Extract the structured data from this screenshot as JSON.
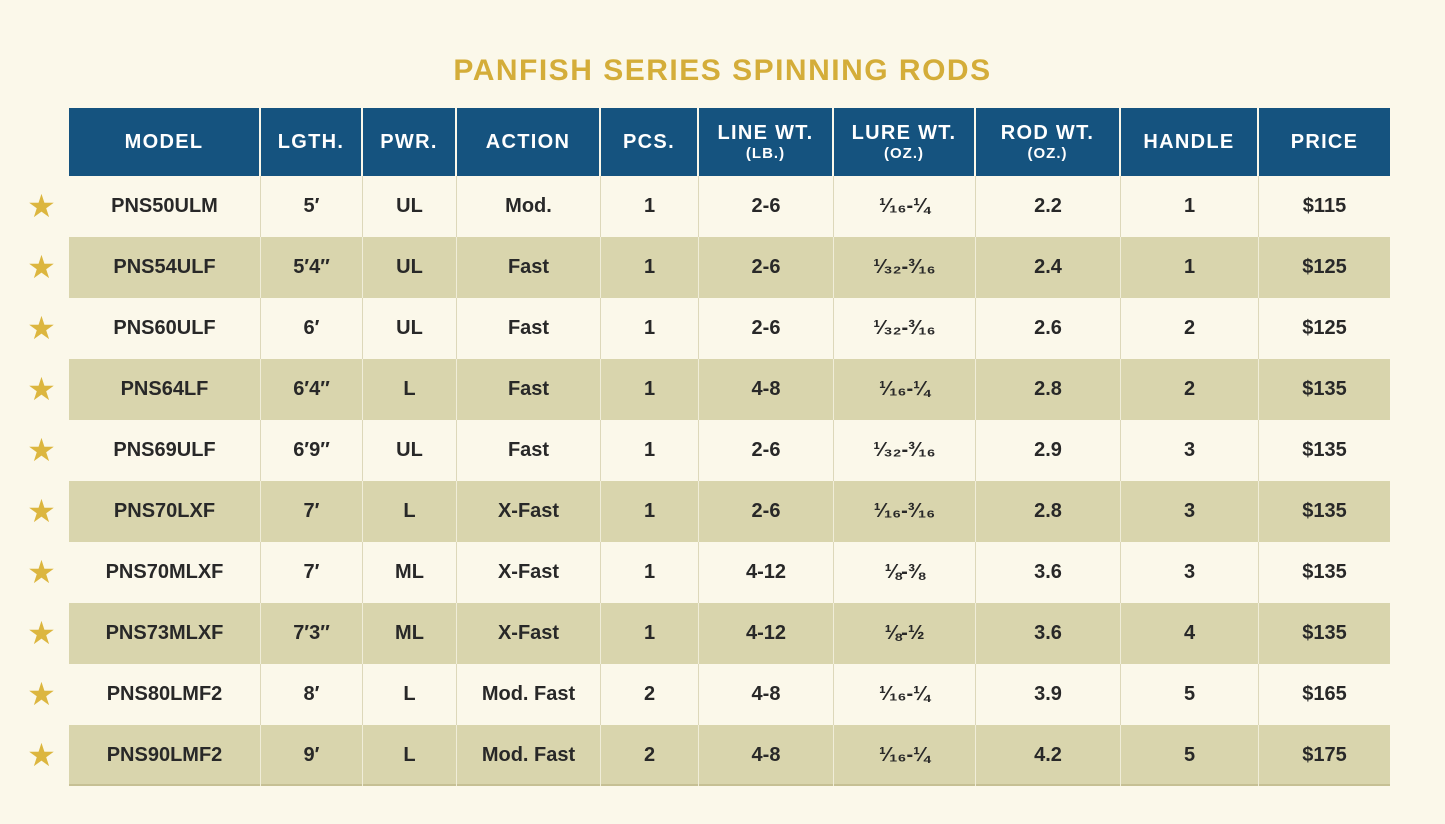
{
  "title": "PANFISH SERIES SPINNING RODS",
  "icons": {
    "star": "★"
  },
  "colors": {
    "page_background": "#fbf8ea",
    "header_background": "#15537f",
    "header_text": "#ffffff",
    "alternate_row": "#d9d5ad",
    "title_gold": "#d4ad39",
    "star_gold": "#dcb63f",
    "body_text": "#282828"
  },
  "table": {
    "columns": [
      {
        "label": "MODEL",
        "sub": ""
      },
      {
        "label": "LGTH.",
        "sub": ""
      },
      {
        "label": "PWR.",
        "sub": ""
      },
      {
        "label": "ACTION",
        "sub": ""
      },
      {
        "label": "PCS.",
        "sub": ""
      },
      {
        "label": "LINE WT.",
        "sub": "(LB.)"
      },
      {
        "label": "LURE WT.",
        "sub": "(OZ.)"
      },
      {
        "label": "ROD WT.",
        "sub": "(OZ.)"
      },
      {
        "label": "HANDLE",
        "sub": ""
      },
      {
        "label": "PRICE",
        "sub": ""
      }
    ],
    "rows": [
      {
        "cells": [
          "PNS50ULM",
          "5′",
          "UL",
          "Mod.",
          "1",
          "2-6",
          "¹⁄₁₆-¼",
          "2.2",
          "1",
          "$115"
        ]
      },
      {
        "cells": [
          "PNS54ULF",
          "5′4″",
          "UL",
          "Fast",
          "1",
          "2-6",
          "¹⁄₃₂-³⁄₁₆",
          "2.4",
          "1",
          "$125"
        ]
      },
      {
        "cells": [
          "PNS60ULF",
          "6′",
          "UL",
          "Fast",
          "1",
          "2-6",
          "¹⁄₃₂-³⁄₁₆",
          "2.6",
          "2",
          "$125"
        ]
      },
      {
        "cells": [
          "PNS64LF",
          "6′4″",
          "L",
          "Fast",
          "1",
          "4-8",
          "¹⁄₁₆-¼",
          "2.8",
          "2",
          "$135"
        ]
      },
      {
        "cells": [
          "PNS69ULF",
          "6′9″",
          "UL",
          "Fast",
          "1",
          "2-6",
          "¹⁄₃₂-³⁄₁₆",
          "2.9",
          "3",
          "$135"
        ]
      },
      {
        "cells": [
          "PNS70LXF",
          "7′",
          "L",
          "X-Fast",
          "1",
          "2-6",
          "¹⁄₁₆-³⁄₁₆",
          "2.8",
          "3",
          "$135"
        ]
      },
      {
        "cells": [
          "PNS70MLXF",
          "7′",
          "ML",
          "X-Fast",
          "1",
          "4-12",
          "⅛-⅜",
          "3.6",
          "3",
          "$135"
        ]
      },
      {
        "cells": [
          "PNS73MLXF",
          "7′3″",
          "ML",
          "X-Fast",
          "1",
          "4-12",
          "⅛-½",
          "3.6",
          "4",
          "$135"
        ]
      },
      {
        "cells": [
          "PNS80LMF2",
          "8′",
          "L",
          "Mod. Fast",
          "2",
          "4-8",
          "¹⁄₁₆-¼",
          "3.9",
          "5",
          "$165"
        ]
      },
      {
        "cells": [
          "PNS90LMF2",
          "9′",
          "L",
          "Mod. Fast",
          "2",
          "4-8",
          "¹⁄₁₆-¼",
          "4.2",
          "5",
          "$175"
        ]
      }
    ]
  }
}
